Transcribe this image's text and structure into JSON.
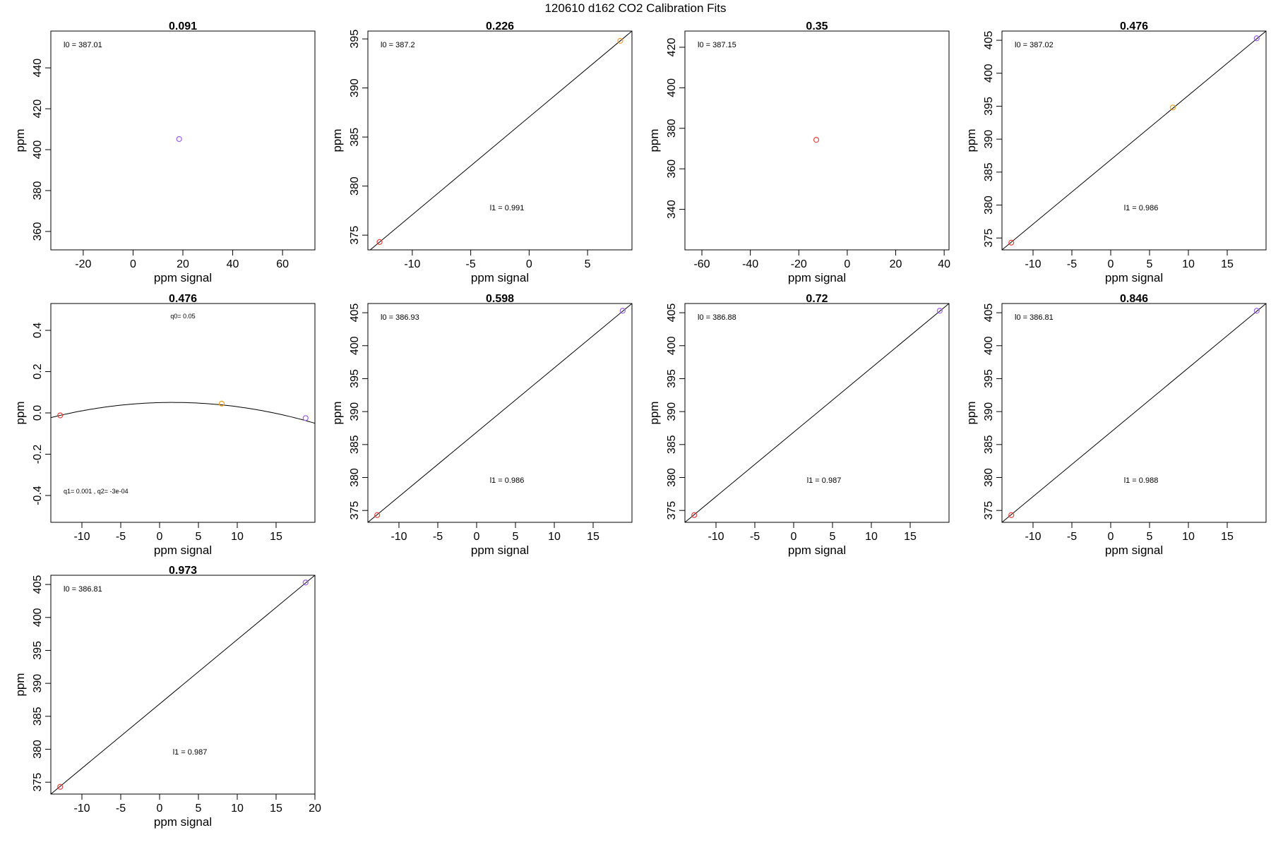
{
  "title": "120610   d162   CO2 Calibration Fits",
  "colors": {
    "red": "#e8413a",
    "orange": "#f0a020",
    "purple": "#9b5ff0",
    "line": "#000000"
  },
  "chart_data": [
    {
      "type": "scatter",
      "title": "0.091",
      "xlabel": "ppm signal",
      "ylabel": "ppm",
      "xlim": [
        -33,
        73
      ],
      "ylim": [
        351,
        458
      ],
      "xticks": [
        -20,
        0,
        20,
        40,
        60
      ],
      "yticks": [
        360,
        380,
        400,
        420,
        440
      ],
      "points": [
        {
          "x": 18.5,
          "y": 405.2,
          "color": "purple"
        }
      ],
      "fit": null,
      "annotations": [
        {
          "text": "l0 =  387.01",
          "pos": "top-left"
        }
      ]
    },
    {
      "type": "scatter",
      "title": "0.226",
      "xlabel": "ppm signal",
      "ylabel": "ppm",
      "xlim": [
        -13.8,
        8.8
      ],
      "ylim": [
        373.5,
        395.8
      ],
      "xticks": [
        -10,
        -5,
        0,
        5
      ],
      "yticks": [
        375,
        380,
        385,
        390,
        395
      ],
      "points": [
        {
          "x": -12.8,
          "y": 374.3,
          "color": "red"
        },
        {
          "x": 7.8,
          "y": 394.8,
          "color": "orange"
        }
      ],
      "fit": {
        "kind": "linear",
        "points": [
          [
            -13.8,
            373.3
          ],
          [
            8.8,
            395.8
          ]
        ]
      },
      "annotations": [
        {
          "text": "l0 =  387.2",
          "pos": "top-left"
        },
        {
          "text": "l1 =  0.991",
          "pos": "lower-center"
        }
      ]
    },
    {
      "type": "scatter",
      "title": "0.35",
      "xlabel": "ppm signal",
      "ylabel": "ppm",
      "xlim": [
        -67,
        42
      ],
      "ylim": [
        320,
        428
      ],
      "xticks": [
        -60,
        -40,
        -20,
        0,
        20,
        40
      ],
      "yticks": [
        340,
        360,
        380,
        400,
        420
      ],
      "points": [
        {
          "x": -12.8,
          "y": 374.3,
          "color": "red"
        }
      ],
      "fit": null,
      "annotations": [
        {
          "text": "l0 =  387.15",
          "pos": "top-left"
        }
      ]
    },
    {
      "type": "scatter",
      "title": "0.476",
      "xlabel": "ppm signal",
      "ylabel": "ppm",
      "xlim": [
        -14,
        20
      ],
      "ylim": [
        373.2,
        406.4
      ],
      "xticks": [
        -10,
        -5,
        0,
        5,
        10,
        15
      ],
      "yticks": [
        375,
        380,
        385,
        390,
        395,
        400,
        405
      ],
      "points": [
        {
          "x": -12.8,
          "y": 374.3,
          "color": "red"
        },
        {
          "x": 8,
          "y": 394.8,
          "color": "orange"
        },
        {
          "x": 18.8,
          "y": 405.3,
          "color": "purple"
        }
      ],
      "fit": {
        "kind": "linear",
        "points": [
          [
            -14,
            373.2
          ],
          [
            20,
            406.4
          ]
        ]
      },
      "annotations": [
        {
          "text": "l0 =  387.02",
          "pos": "top-left"
        },
        {
          "text": "l1 =  0.986",
          "pos": "lower-center"
        }
      ]
    },
    {
      "type": "scatter",
      "title": "0.476",
      "xlabel": "ppm signal",
      "ylabel": "ppm",
      "xlim": [
        -14,
        20
      ],
      "ylim": [
        -0.53,
        0.53
      ],
      "xticks": [
        -10,
        -5,
        0,
        5,
        10,
        15
      ],
      "yticks": [
        -0.4,
        -0.2,
        0.0,
        0.2,
        0.4
      ],
      "yticklabels": [
        "-0.4",
        "-0.2",
        "0.0",
        "0.2",
        "0.4"
      ],
      "points": [
        {
          "x": -12.8,
          "y": -0.012,
          "color": "red"
        },
        {
          "x": 8,
          "y": 0.045,
          "color": "orange"
        },
        {
          "x": 18.8,
          "y": -0.025,
          "color": "purple"
        }
      ],
      "fit": {
        "kind": "quadratic",
        "q0": 0.05,
        "q1": 0.001,
        "q2": -0.0003
      },
      "annotations": [
        {
          "text": "q0= 0.05",
          "pos": "top-center"
        },
        {
          "text": "q1= 0.001 ,  q2=  -3e-04",
          "pos": "bottom-left"
        }
      ]
    },
    {
      "type": "scatter",
      "title": "0.598",
      "xlabel": "ppm signal",
      "ylabel": "ppm",
      "xlim": [
        -14,
        20
      ],
      "ylim": [
        373.2,
        406.4
      ],
      "xticks": [
        -10,
        -5,
        0,
        5,
        10,
        15
      ],
      "yticks": [
        375,
        380,
        385,
        390,
        395,
        400,
        405
      ],
      "points": [
        {
          "x": -12.8,
          "y": 374.3,
          "color": "red"
        },
        {
          "x": 18.8,
          "y": 405.3,
          "color": "purple"
        }
      ],
      "fit": {
        "kind": "linear",
        "points": [
          [
            -14,
            373.2
          ],
          [
            20,
            406.4
          ]
        ]
      },
      "annotations": [
        {
          "text": "l0 =  386.93",
          "pos": "top-left"
        },
        {
          "text": "l1 =  0.986",
          "pos": "lower-center"
        }
      ]
    },
    {
      "type": "scatter",
      "title": "0.72",
      "xlabel": "ppm signal",
      "ylabel": "ppm",
      "xlim": [
        -14,
        20
      ],
      "ylim": [
        373.2,
        406.4
      ],
      "xticks": [
        -10,
        -5,
        0,
        5,
        10,
        15
      ],
      "yticks": [
        375,
        380,
        385,
        390,
        395,
        400,
        405
      ],
      "points": [
        {
          "x": -12.8,
          "y": 374.3,
          "color": "red"
        },
        {
          "x": 18.8,
          "y": 405.3,
          "color": "purple"
        }
      ],
      "fit": {
        "kind": "linear",
        "points": [
          [
            -14,
            373.2
          ],
          [
            20,
            406.4
          ]
        ]
      },
      "annotations": [
        {
          "text": "l0 =  386.88",
          "pos": "top-left"
        },
        {
          "text": "l1 =  0.987",
          "pos": "lower-center"
        }
      ]
    },
    {
      "type": "scatter",
      "title": "0.846",
      "xlabel": "ppm signal",
      "ylabel": "ppm",
      "xlim": [
        -14,
        20
      ],
      "ylim": [
        373.2,
        406.4
      ],
      "xticks": [
        -10,
        -5,
        0,
        5,
        10,
        15
      ],
      "yticks": [
        375,
        380,
        385,
        390,
        395,
        400,
        405
      ],
      "points": [
        {
          "x": -12.8,
          "y": 374.3,
          "color": "red"
        },
        {
          "x": 18.8,
          "y": 405.3,
          "color": "purple"
        }
      ],
      "fit": {
        "kind": "linear",
        "points": [
          [
            -14,
            373.2
          ],
          [
            20,
            406.4
          ]
        ]
      },
      "annotations": [
        {
          "text": "l0 =  386.81",
          "pos": "top-left"
        },
        {
          "text": "l1 =  0.988",
          "pos": "lower-center"
        }
      ]
    },
    {
      "type": "scatter",
      "title": "0.973",
      "xlabel": "ppm signal",
      "ylabel": "ppm",
      "xlim": [
        -14,
        20
      ],
      "ylim": [
        373.2,
        406.4
      ],
      "xticks": [
        -10,
        -5,
        0,
        5,
        10,
        15,
        20
      ],
      "yticks": [
        375,
        380,
        385,
        390,
        395,
        400,
        405
      ],
      "points": [
        {
          "x": -12.8,
          "y": 374.3,
          "color": "red"
        },
        {
          "x": 18.8,
          "y": 405.3,
          "color": "purple"
        }
      ],
      "fit": {
        "kind": "linear",
        "points": [
          [
            -14,
            373.2
          ],
          [
            20,
            406.4
          ]
        ]
      },
      "annotations": [
        {
          "text": "l0 =  386.81",
          "pos": "top-left"
        },
        {
          "text": "l1 =  0.987",
          "pos": "lower-center"
        }
      ]
    }
  ]
}
